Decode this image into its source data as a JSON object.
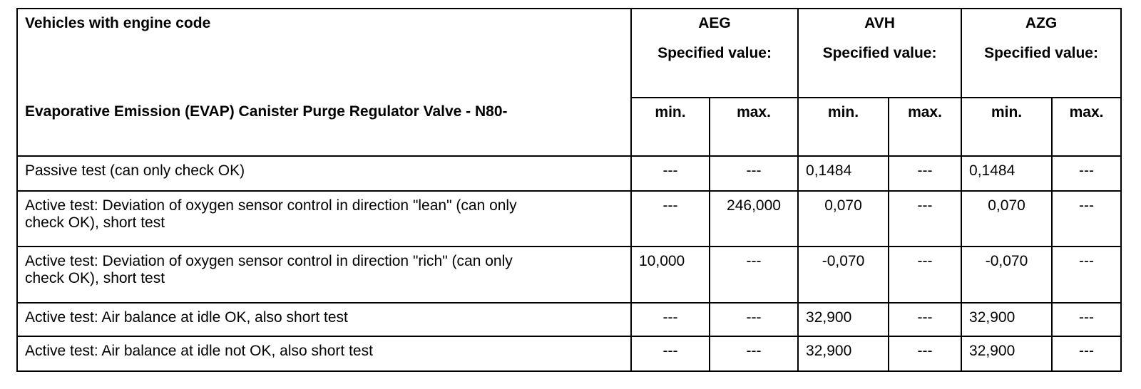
{
  "header": {
    "vehicles_label": "Vehicles with engine code",
    "component_label": "Evaporative Emission (EVAP) Canister Purge Regulator Valve - N80-",
    "engines": [
      {
        "code": "AEG",
        "spec_label": "Specified value:"
      },
      {
        "code": "AVH",
        "spec_label": "Specified value:"
      },
      {
        "code": "AZG",
        "spec_label": "Specified value:"
      }
    ],
    "min_label": "min.",
    "max_label": "max."
  },
  "rows": [
    {
      "test": "Passive test (can only check OK)",
      "values": [
        "---",
        "---",
        "0,1484",
        "---",
        "0,1484",
        "---"
      ]
    },
    {
      "test": "Active test: Deviation of oxygen sensor control in direction \"lean\" (can only check OK), short test",
      "values": [
        "---",
        "246,000",
        "0,070",
        "---",
        "0,070",
        "---"
      ]
    },
    {
      "test": "Active test: Deviation of oxygen sensor control in direction \"rich\" (can only check OK), short test",
      "values": [
        "10,000",
        "---",
        "-0,070",
        "---",
        "-0,070",
        "---"
      ]
    },
    {
      "test": "Active test: Air balance at idle OK, also short test",
      "values": [
        "---",
        "---",
        "32,900",
        "---",
        "32,900",
        "---"
      ]
    },
    {
      "test": "Active test: Air balance at idle not OK, also short test",
      "values": [
        "---",
        "---",
        "32,900",
        "---",
        "32,900",
        "---"
      ]
    }
  ]
}
